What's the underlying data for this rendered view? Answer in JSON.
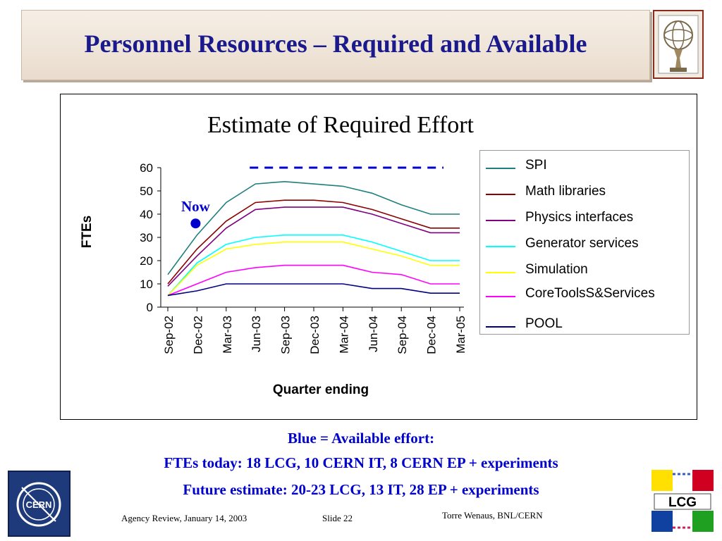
{
  "slide": {
    "title": "Personnel Resources – Required and Available",
    "notes": [
      "Blue = Available effort:",
      "FTEs today: 18 LCG, 10 CERN IT, 8 CERN EP + experiments",
      "Future estimate: 20-23 LCG, 13 IT, 28 EP + experiments"
    ],
    "footer": {
      "left": "Agency Review, January 14, 2003",
      "center": "Slide 22",
      "right": "Torre Wenaus, BNL/CERN"
    },
    "logos": {
      "cern_text": "CERN",
      "lcg_text": "LCG"
    }
  },
  "chart_data": {
    "type": "line",
    "title": "Estimate of Required Effort",
    "xlabel": "Quarter ending",
    "ylabel": "FTEs",
    "ylim": [
      0,
      60
    ],
    "yticks": [
      0,
      10,
      20,
      30,
      40,
      50,
      60
    ],
    "grid": false,
    "legend_position": "right",
    "categories": [
      "Sep-02",
      "Dec-02",
      "Mar-03",
      "Jun-03",
      "Sep-03",
      "Dec-03",
      "Mar-04",
      "Jun-04",
      "Sep-04",
      "Dec-04",
      "Mar-05"
    ],
    "series": [
      {
        "name": "SPI",
        "color": "#1f7f7f",
        "values": [
          14,
          31,
          45,
          53,
          54,
          53,
          52,
          49,
          44,
          40,
          40
        ]
      },
      {
        "name": "Math libraries",
        "color": "#8b0000",
        "values": [
          10,
          25,
          37,
          45,
          46,
          46,
          45,
          42,
          38,
          34,
          34
        ]
      },
      {
        "name": "Physics interfaces",
        "color": "#800080",
        "values": [
          9,
          22,
          34,
          42,
          43,
          43,
          43,
          40,
          36,
          32,
          32
        ]
      },
      {
        "name": "Generator services",
        "color": "#00ffff",
        "values": [
          5,
          19,
          27,
          30,
          31,
          31,
          31,
          28,
          24,
          20,
          20
        ]
      },
      {
        "name": "Simulation",
        "color": "#ffff00",
        "values": [
          5,
          18,
          25,
          27,
          28,
          28,
          28,
          25,
          22,
          18,
          18
        ]
      },
      {
        "name": "CoreToolsS&Services",
        "color": "#ff00ff",
        "values": [
          5,
          10,
          15,
          17,
          18,
          18,
          18,
          15,
          14,
          10,
          10
        ]
      },
      {
        "name": "POOL",
        "color": "#000080",
        "values": [
          5,
          7,
          10,
          10,
          10,
          10,
          10,
          8,
          8,
          6,
          6
        ]
      }
    ],
    "available_effort": {
      "color": "#0000cc",
      "value": 60,
      "x_from": "Jun-03",
      "x_to": "Mar-05"
    },
    "annotation": {
      "text": "Now",
      "color": "#0000cc",
      "x": "Dec-02",
      "y": 36
    }
  }
}
